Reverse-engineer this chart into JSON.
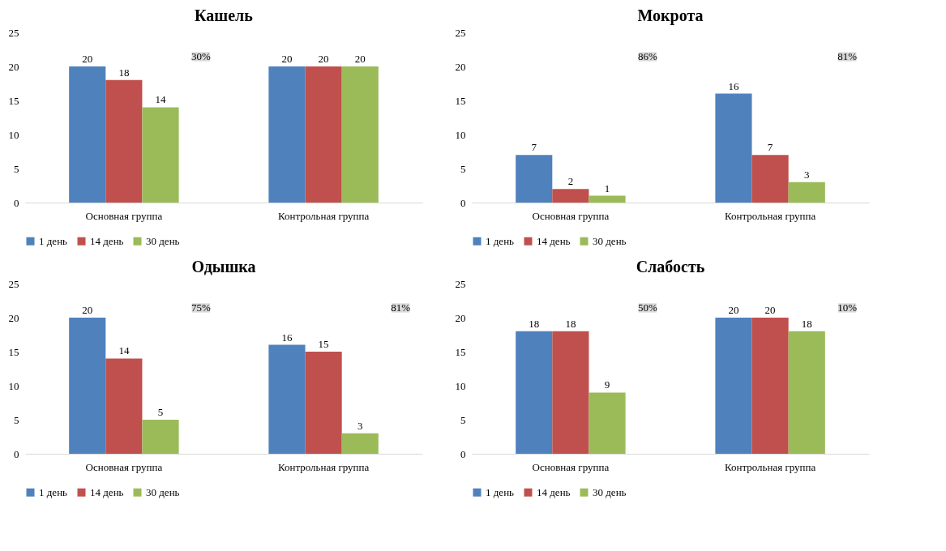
{
  "chart_data": [
    {
      "type": "bar",
      "title": "Кашель",
      "categories": [
        "Основная группа",
        "Контрольная группа"
      ],
      "series": [
        {
          "name": "1 день",
          "color": "#4f81bd",
          "values": [
            20,
            20
          ]
        },
        {
          "name": "14 день",
          "color": "#c0504d",
          "values": [
            18,
            20
          ]
        },
        {
          "name": "30 день",
          "color": "#9bbb59",
          "values": [
            14,
            20
          ]
        }
      ],
      "ylim": [
        0,
        25
      ],
      "yticks": [
        0,
        5,
        10,
        15,
        20,
        25
      ],
      "grid": false,
      "legend": "bottom",
      "data_labels": true,
      "annotations": [
        "30%"
      ]
    },
    {
      "type": "bar",
      "title": "Мокрота",
      "categories": [
        "Основная группа",
        "Контрольная группа"
      ],
      "series": [
        {
          "name": "1 день",
          "color": "#4f81bd",
          "values": [
            7,
            16
          ]
        },
        {
          "name": "14 день",
          "color": "#c0504d",
          "values": [
            2,
            7
          ]
        },
        {
          "name": "30 день",
          "color": "#9bbb59",
          "values": [
            1,
            3
          ]
        }
      ],
      "ylim": [
        0,
        25
      ],
      "yticks": [
        0,
        5,
        10,
        15,
        20,
        25
      ],
      "grid": false,
      "legend": "bottom",
      "data_labels": true,
      "annotations": [
        "86%",
        "81%"
      ]
    },
    {
      "type": "bar",
      "title": "Одышка",
      "categories": [
        "Основная группа",
        "Контрольная группа"
      ],
      "series": [
        {
          "name": "1 день",
          "color": "#4f81bd",
          "values": [
            20,
            16
          ]
        },
        {
          "name": "14 день",
          "color": "#c0504d",
          "values": [
            14,
            15
          ]
        },
        {
          "name": "30 день",
          "color": "#9bbb59",
          "values": [
            5,
            3
          ]
        }
      ],
      "ylim": [
        0,
        25
      ],
      "yticks": [
        0,
        5,
        10,
        15,
        20,
        25
      ],
      "grid": false,
      "legend": "bottom",
      "data_labels": true,
      "annotations": [
        "75%",
        "81%"
      ]
    },
    {
      "type": "bar",
      "title": "Слабость",
      "categories": [
        "Основная группа",
        "Контрольная группа"
      ],
      "series": [
        {
          "name": "1 день",
          "color": "#4f81bd",
          "values": [
            18,
            20
          ]
        },
        {
          "name": "14 день",
          "color": "#c0504d",
          "values": [
            18,
            20
          ]
        },
        {
          "name": "30 день",
          "color": "#9bbb59",
          "values": [
            9,
            18
          ]
        }
      ],
      "ylim": [
        0,
        25
      ],
      "yticks": [
        0,
        5,
        10,
        15,
        20,
        25
      ],
      "grid": false,
      "legend": "bottom",
      "data_labels": true,
      "annotations": [
        "50%",
        "10%"
      ]
    }
  ]
}
